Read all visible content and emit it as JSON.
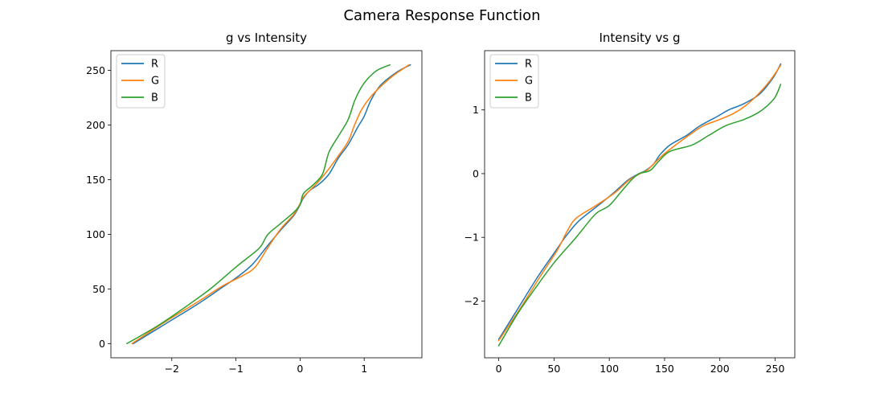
{
  "figure": {
    "suptitle": "Camera Response Function"
  },
  "colors": {
    "R": "#1f77b4",
    "G": "#ff7f0e",
    "B": "#2ca02c"
  },
  "chart_data": [
    {
      "type": "line",
      "title": "g vs Intensity",
      "xlabel": "",
      "ylabel": "",
      "xlim": [
        -2.95,
        1.9
      ],
      "ylim": [
        -13,
        268
      ],
      "xticks": [
        -2,
        -1,
        0,
        1
      ],
      "xtick_labels": [
        "−2",
        "−1",
        "0",
        "1"
      ],
      "yticks": [
        0,
        50,
        100,
        150,
        200,
        250
      ],
      "ytick_labels": [
        "0",
        "50",
        "100",
        "150",
        "200",
        "250"
      ],
      "grid": false,
      "legend_position": "top-left",
      "series": [
        {
          "name": "R",
          "color": "#1f77b4",
          "x": [
            -2.6,
            -2.1,
            -1.6,
            -1.2,
            -1.0,
            -0.75,
            -0.5,
            -0.3,
            -0.1,
            0.0,
            0.05,
            0.15,
            0.3,
            0.45,
            0.6,
            0.75,
            0.9,
            1.0,
            1.1,
            1.25,
            1.5,
            1.72
          ],
          "y": [
            0,
            18,
            36,
            52,
            60,
            72,
            90,
            104,
            117,
            127,
            133,
            140,
            146,
            155,
            170,
            182,
            198,
            208,
            222,
            236,
            248,
            255
          ]
        },
        {
          "name": "G",
          "color": "#ff7f0e",
          "x": [
            -2.62,
            -2.1,
            -1.6,
            -1.2,
            -0.9,
            -0.7,
            -0.5,
            -0.3,
            -0.1,
            0.0,
            0.05,
            0.15,
            0.3,
            0.45,
            0.6,
            0.75,
            0.85,
            0.95,
            1.05,
            1.2,
            1.45,
            1.7
          ],
          "y": [
            0,
            20,
            38,
            53,
            62,
            70,
            88,
            105,
            118,
            128,
            134,
            140,
            149,
            160,
            172,
            185,
            200,
            213,
            222,
            232,
            245,
            255
          ]
        },
        {
          "name": "B",
          "color": "#2ca02c",
          "x": [
            -2.7,
            -2.2,
            -1.8,
            -1.4,
            -1.0,
            -0.7,
            -0.6,
            -0.5,
            -0.3,
            -0.1,
            0.0,
            0.05,
            0.2,
            0.35,
            0.45,
            0.6,
            0.75,
            0.85,
            0.95,
            1.05,
            1.2,
            1.4
          ],
          "y": [
            0,
            17,
            33,
            50,
            70,
            84,
            90,
            100,
            110,
            120,
            127,
            137,
            145,
            155,
            175,
            190,
            205,
            222,
            234,
            242,
            250,
            255
          ]
        }
      ]
    },
    {
      "type": "line",
      "title": "Intensity vs g",
      "xlabel": "",
      "ylabel": "",
      "xlim": [
        -12.8,
        267.8
      ],
      "ylim": [
        -2.89,
        1.93
      ],
      "xticks": [
        0,
        50,
        100,
        150,
        200,
        250
      ],
      "xtick_labels": [
        "0",
        "50",
        "100",
        "150",
        "200",
        "250"
      ],
      "yticks": [
        -2,
        -1,
        0,
        1
      ],
      "ytick_labels": [
        "−2",
        "−1",
        "0",
        "1"
      ],
      "grid": false,
      "legend_position": "top-left",
      "series": [
        {
          "name": "R",
          "color": "#1f77b4",
          "x": [
            0,
            18,
            36,
            52,
            60,
            72,
            90,
            104,
            117,
            127,
            133,
            140,
            146,
            155,
            170,
            182,
            198,
            208,
            222,
            236,
            248,
            255
          ],
          "y": [
            -2.6,
            -2.1,
            -1.6,
            -1.2,
            -1.0,
            -0.75,
            -0.5,
            -0.3,
            -0.1,
            0.0,
            0.05,
            0.15,
            0.3,
            0.45,
            0.6,
            0.75,
            0.9,
            1.0,
            1.1,
            1.25,
            1.5,
            1.72
          ]
        },
        {
          "name": "G",
          "color": "#ff7f0e",
          "x": [
            0,
            20,
            38,
            53,
            62,
            70,
            88,
            105,
            118,
            128,
            134,
            140,
            149,
            160,
            172,
            185,
            200,
            213,
            222,
            232,
            245,
            255
          ],
          "y": [
            -2.62,
            -2.1,
            -1.6,
            -1.2,
            -0.9,
            -0.7,
            -0.5,
            -0.3,
            -0.1,
            0.0,
            0.05,
            0.15,
            0.3,
            0.45,
            0.6,
            0.75,
            0.85,
            0.95,
            1.05,
            1.2,
            1.45,
            1.7
          ]
        },
        {
          "name": "B",
          "color": "#2ca02c",
          "x": [
            0,
            17,
            33,
            50,
            70,
            84,
            90,
            100,
            110,
            120,
            127,
            137,
            145,
            155,
            175,
            190,
            205,
            222,
            234,
            242,
            250,
            255
          ],
          "y": [
            -2.7,
            -2.2,
            -1.8,
            -1.4,
            -1.0,
            -0.7,
            -0.6,
            -0.5,
            -0.3,
            -0.1,
            0.0,
            0.05,
            0.2,
            0.35,
            0.45,
            0.6,
            0.75,
            0.85,
            0.95,
            1.05,
            1.2,
            1.4
          ]
        }
      ]
    }
  ]
}
